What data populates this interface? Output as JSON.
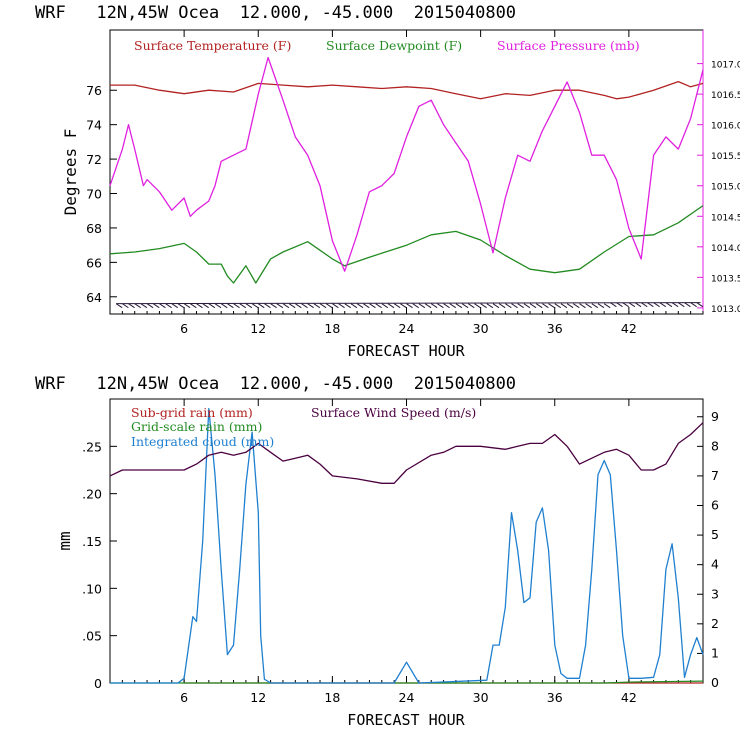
{
  "chart_data": [
    {
      "type": "line",
      "header": "WRF   12N,45W Ocea  12.000, -45.000  2015040800",
      "xlabel": "FORECAST HOUR",
      "ylabel": "Degrees F",
      "xlim": [
        0,
        48
      ],
      "ylim": [
        63,
        79.5
      ],
      "y2lim": [
        1012.9,
        1017.55
      ],
      "x_ticks": [
        "6",
        "12",
        "18",
        "24",
        "30",
        "36",
        "42"
      ],
      "y_ticks": [
        "64",
        "66",
        "68",
        "70",
        "72",
        "74",
        "76"
      ],
      "y2_ticks": [
        "1013.0",
        "1013.5",
        "1014.0",
        "1014.5",
        "1015.0",
        "1015.5",
        "1016.0",
        "1016.5",
        "1017.0"
      ],
      "series": [
        {
          "name": "Surface Temperature (F)",
          "color": "#b22222",
          "axis": "left",
          "x": [
            0,
            2,
            4,
            6,
            8,
            10,
            12,
            14,
            16,
            18,
            20,
            22,
            24,
            26,
            28,
            30,
            32,
            34,
            36,
            38,
            40,
            41,
            42,
            44,
            46,
            47,
            48
          ],
          "y": [
            76.3,
            76.3,
            76.0,
            75.8,
            76.0,
            75.9,
            76.4,
            76.3,
            76.2,
            76.3,
            76.2,
            76.1,
            76.2,
            76.1,
            75.8,
            75.5,
            75.8,
            75.7,
            76.0,
            76.0,
            75.7,
            75.5,
            75.6,
            76.0,
            76.5,
            76.2,
            76.4
          ]
        },
        {
          "name": "Surface Dewpoint (F)",
          "color": "#228b22",
          "axis": "left",
          "x": [
            0,
            2,
            4,
            6,
            7,
            8,
            9,
            9.5,
            10,
            11,
            11.8,
            13,
            14,
            16,
            18,
            19,
            21,
            24,
            26,
            28,
            30,
            32,
            34,
            36,
            38,
            40,
            42,
            44,
            46,
            48
          ],
          "y": [
            66.5,
            66.6,
            66.8,
            67.1,
            66.6,
            65.9,
            65.9,
            65.2,
            64.8,
            65.8,
            64.8,
            66.2,
            66.6,
            67.2,
            66.2,
            65.8,
            66.3,
            67.0,
            67.6,
            67.8,
            67.3,
            66.4,
            65.6,
            65.4,
            65.6,
            66.6,
            67.5,
            67.6,
            68.3,
            69.3
          ]
        },
        {
          "name": "Surface Pressure (mb)",
          "color": "#e020e0",
          "axis": "right",
          "x": [
            0,
            1,
            1.5,
            2,
            2.7,
            3,
            4,
            5,
            6,
            6.5,
            7,
            8,
            8.5,
            9,
            10,
            11,
            12,
            12.8,
            14,
            15,
            16,
            17,
            18,
            19,
            20,
            21,
            22,
            23,
            24,
            25,
            26,
            27,
            28,
            29,
            30,
            31,
            32,
            33,
            34,
            35,
            36,
            37,
            38,
            39,
            40,
            41,
            42,
            43,
            44,
            45,
            46,
            47,
            48
          ],
          "y": [
            1015.0,
            1015.6,
            1016.0,
            1015.6,
            1015.0,
            1015.1,
            1014.9,
            1014.6,
            1014.8,
            1014.5,
            1014.6,
            1014.75,
            1015.0,
            1015.4,
            1015.5,
            1015.6,
            1016.5,
            1017.1,
            1016.4,
            1015.8,
            1015.5,
            1015.0,
            1014.1,
            1013.6,
            1014.2,
            1014.9,
            1015.0,
            1015.2,
            1015.8,
            1016.3,
            1016.4,
            1016.0,
            1015.7,
            1015.4,
            1014.7,
            1013.9,
            1014.8,
            1015.5,
            1015.4,
            1015.9,
            1016.3,
            1016.7,
            1016.2,
            1015.5,
            1015.5,
            1015.1,
            1014.3,
            1013.8,
            1015.5,
            1015.8,
            1015.6,
            1016.1,
            1016.9
          ]
        }
      ],
      "wind_barbs": "row of wind barbs along the bottom of the panel"
    },
    {
      "type": "line",
      "header": "WRF   12N,45W Ocea  12.000, -45.000  2015040800",
      "xlabel": "FORECAST HOUR",
      "ylabel": "mm",
      "xlim": [
        0,
        48
      ],
      "ylim": [
        0,
        0.3
      ],
      "y2lim": [
        0,
        9.6
      ],
      "x_ticks": [
        "6",
        "12",
        "18",
        "24",
        "30",
        "36",
        "42"
      ],
      "y_ticks": [
        "0",
        ".05",
        ".10",
        ".15",
        ".20",
        ".25"
      ],
      "y2_ticks": [
        "0",
        "1",
        "2",
        "3",
        "4",
        "5",
        "6",
        "7",
        "8",
        "9"
      ],
      "series": [
        {
          "name": "Sub-grid rain (mm)",
          "color": "#b22222",
          "axis": "left",
          "x": [
            6,
            48
          ],
          "y": [
            0,
            0
          ]
        },
        {
          "name": "Grid-scale rain (mm)",
          "color": "#228b22",
          "axis": "left",
          "x": [
            0,
            38,
            40,
            42,
            48
          ],
          "y": [
            0,
            0,
            0,
            0.001,
            0.002
          ]
        },
        {
          "name": "Integrated cloud (mm)",
          "color": "#2080d0",
          "axis": "left",
          "x": [
            0,
            5.5,
            6,
            6.7,
            7,
            7.5,
            8,
            8.5,
            9,
            9.5,
            10,
            10.5,
            11,
            11.5,
            12,
            12.2,
            12.5,
            13,
            23,
            24,
            25,
            30.5,
            31,
            31.5,
            32,
            32.5,
            33,
            33.5,
            34,
            34.5,
            35,
            35.5,
            36,
            36.5,
            37,
            38,
            38.5,
            39,
            39.5,
            40,
            40.5,
            41,
            41.5,
            42,
            43,
            44,
            44.5,
            45,
            45.5,
            46,
            46.5,
            47,
            47.5,
            48
          ],
          "y": [
            0,
            0,
            0.005,
            0.07,
            0.065,
            0.15,
            0.29,
            0.22,
            0.12,
            0.03,
            0.04,
            0.12,
            0.21,
            0.265,
            0.18,
            0.05,
            0.004,
            0,
            0,
            0.022,
            0,
            0.003,
            0.04,
            0.04,
            0.08,
            0.18,
            0.14,
            0.085,
            0.09,
            0.17,
            0.185,
            0.14,
            0.04,
            0.01,
            0.005,
            0.005,
            0.04,
            0.12,
            0.22,
            0.235,
            0.22,
            0.14,
            0.05,
            0.005,
            0.005,
            0.006,
            0.03,
            0.12,
            0.147,
            0.09,
            0.006,
            0.03,
            0.048,
            0.03
          ]
        },
        {
          "name": "Surface Wind Speed (m/s)",
          "color": "#4b0040",
          "axis": "right",
          "x": [
            0,
            1,
            3,
            5,
            6,
            7,
            8,
            9,
            10,
            11,
            12,
            13,
            14,
            15,
            16,
            17,
            18,
            20,
            22,
            23,
            24,
            26,
            27,
            28,
            30,
            32,
            33,
            34,
            35,
            36,
            37,
            38,
            39,
            40,
            41,
            42,
            43,
            44,
            45,
            46,
            47,
            48
          ],
          "y": [
            7.0,
            7.2,
            7.2,
            7.2,
            7.2,
            7.4,
            7.7,
            7.8,
            7.7,
            7.8,
            8.1,
            7.8,
            7.5,
            7.6,
            7.7,
            7.4,
            7.0,
            6.9,
            6.75,
            6.75,
            7.2,
            7.7,
            7.8,
            8.0,
            8.0,
            7.9,
            8.0,
            8.1,
            8.1,
            8.4,
            8.0,
            7.4,
            7.6,
            7.8,
            7.9,
            7.7,
            7.2,
            7.2,
            7.4,
            8.1,
            8.4,
            8.8
          ]
        }
      ]
    }
  ]
}
